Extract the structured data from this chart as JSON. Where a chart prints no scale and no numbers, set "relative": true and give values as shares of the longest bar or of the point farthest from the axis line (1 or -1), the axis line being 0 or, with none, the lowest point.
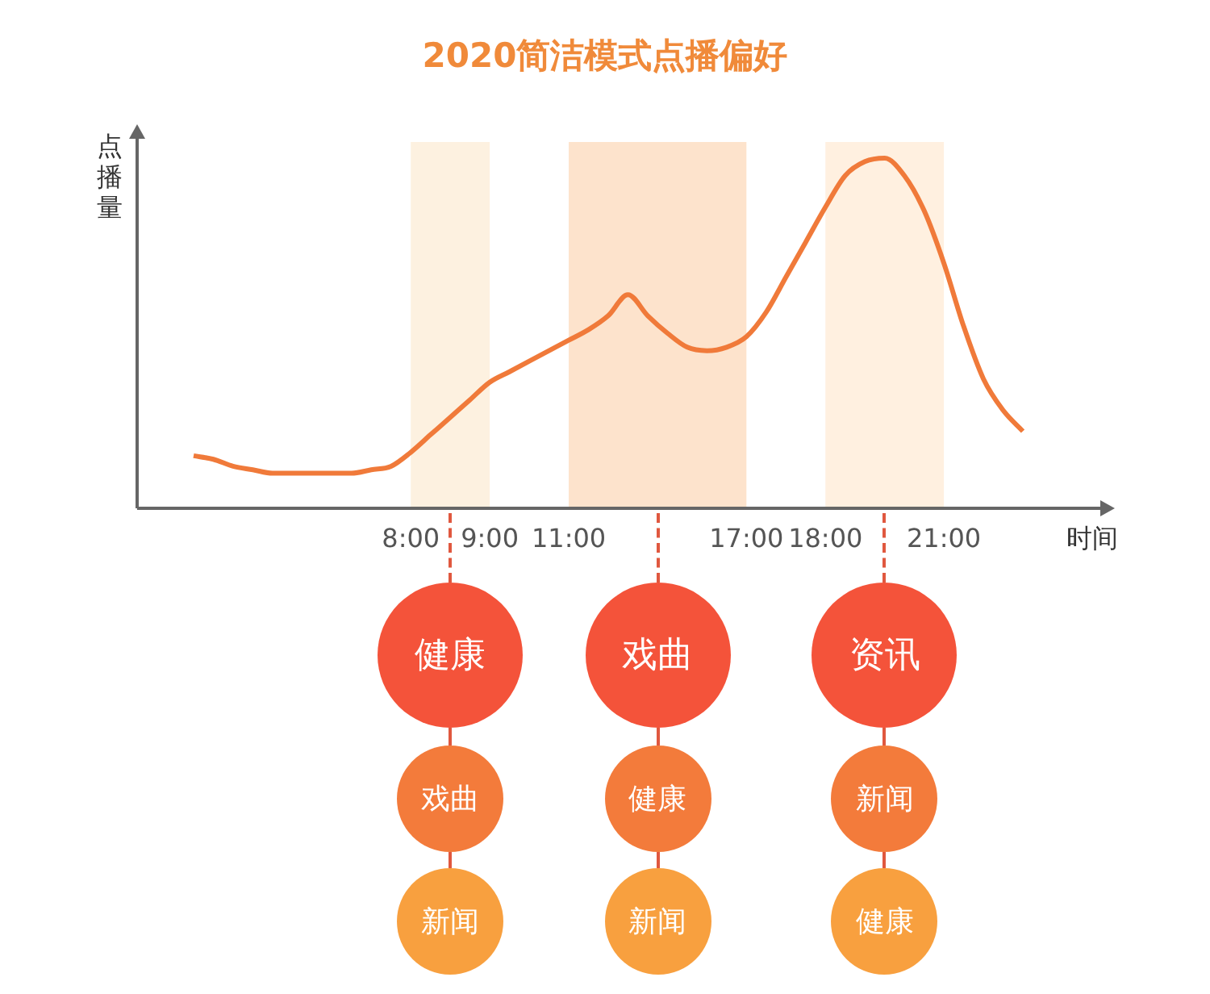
{
  "chart_data": {
    "type": "line",
    "title": "2020简洁模式点播偏好",
    "xlabel": "时间",
    "ylabel": "点播量",
    "relative": true,
    "tick_labels": "x",
    "grid": false,
    "legend": false,
    "marker": "none",
    "categories": [
      null,
      null,
      null,
      null,
      null,
      null,
      null,
      null,
      null,
      null,
      null,
      "8:00",
      null,
      null,
      null,
      "9:00",
      null,
      null,
      null,
      "11:00",
      null,
      null,
      null,
      null,
      null,
      null,
      null,
      null,
      "17:00",
      null,
      null,
      null,
      "18:00",
      null,
      null,
      null,
      null,
      null,
      "21:00",
      null,
      null,
      null,
      null
    ],
    "series": [
      {
        "color": "#f07a3a",
        "values": [
          0.15,
          0.14,
          0.12,
          0.11,
          0.1,
          0.1,
          0.1,
          0.1,
          0.1,
          0.11,
          0.12,
          0.16,
          0.21,
          0.26,
          0.31,
          0.36,
          0.39,
          0.42,
          0.45,
          0.48,
          0.51,
          0.55,
          0.61,
          0.55,
          0.5,
          0.46,
          0.45,
          0.46,
          0.49,
          0.56,
          0.66,
          0.76,
          0.86,
          0.95,
          0.99,
          1.0,
          0.95,
          0.85,
          0.7,
          0.52,
          0.37,
          0.28,
          0.22
        ]
      }
    ],
    "bands": [
      {
        "axis": "x",
        "from": "8:00",
        "to": "9:00",
        "color": "#fdf1e0"
      },
      {
        "axis": "x",
        "from": "11:00",
        "to": "17:00",
        "color": "#fde3cc"
      },
      {
        "axis": "x",
        "from": "18:00",
        "to": "21:00",
        "color": "#fff0e0"
      }
    ],
    "annotations": [
      "健康",
      "戏曲",
      "新闻",
      "戏曲",
      "健康",
      "新闻",
      "资讯",
      "新闻",
      "健康"
    ]
  }
}
